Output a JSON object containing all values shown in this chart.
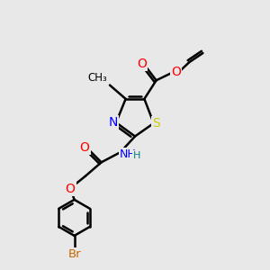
{
  "bg_color": "#e8e8e8",
  "bond_color": "#000000",
  "bond_width": 1.8,
  "atom_colors": {
    "O": "#ff0000",
    "N": "#0000ff",
    "S": "#cccc00",
    "Br": "#cc6600",
    "C": "#000000",
    "H": "#008080"
  },
  "font_size": 9,
  "fig_size": [
    3.0,
    3.0
  ],
  "dpi": 100
}
